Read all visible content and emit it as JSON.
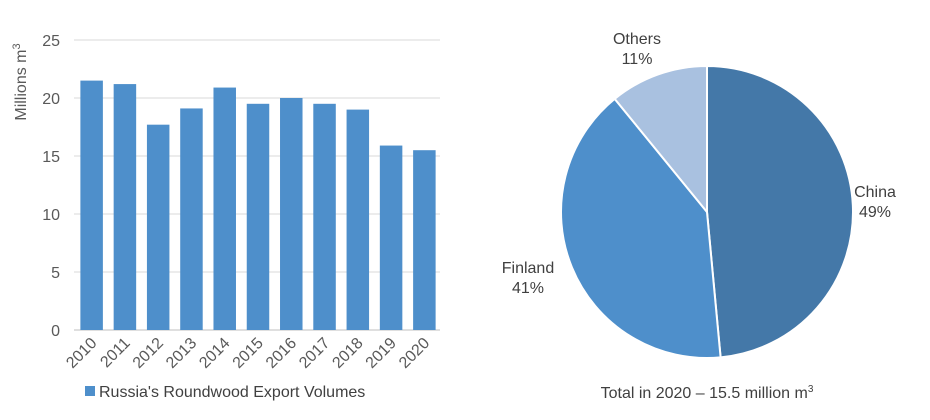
{
  "chart_data": [
    {
      "type": "bar",
      "categories": [
        "2010",
        "2011",
        "2012",
        "2013",
        "2014",
        "2015",
        "2016",
        "2017",
        "2018",
        "2019",
        "2020"
      ],
      "series": [
        {
          "name": "Russia's Roundwood Export Volumes",
          "values": [
            21.5,
            21.2,
            17.7,
            19.1,
            20.9,
            19.5,
            20.0,
            19.5,
            19.0,
            15.9,
            15.5
          ],
          "color": "#4e8fcb"
        }
      ],
      "yticks": [
        "0",
        "5",
        "10",
        "15",
        "20",
        "25"
      ],
      "ylim": [
        0,
        25
      ],
      "ylabel": "Millions m",
      "ylabel_sup": "3",
      "grid": true,
      "legend": "bottom"
    },
    {
      "type": "pie",
      "slices": [
        {
          "label": "China",
          "value": 49,
          "pct_label": "49%",
          "color": "#4478a8"
        },
        {
          "label": "Finland",
          "value": 41,
          "pct_label": "41%",
          "color": "#4e8fcb"
        },
        {
          "label": "Others",
          "value": 11,
          "pct_label": "11%",
          "color": "#a9c1e0"
        }
      ],
      "caption": "Total in 2020 – 15.5 million m",
      "caption_sup": "3",
      "start": "top",
      "direction": "clockwise"
    }
  ]
}
